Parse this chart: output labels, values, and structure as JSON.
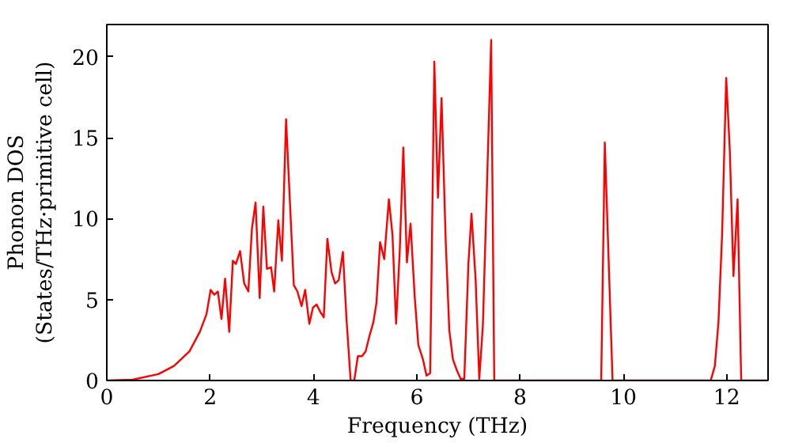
{
  "chart_data": {
    "type": "line",
    "xlabel": "Frequency (THz)",
    "ylabel": "Phonon DOS\n(States/THz·primitive cell)",
    "xlim": [
      0,
      12.8
    ],
    "ylim": [
      0,
      22
    ],
    "xticks": [
      0,
      2,
      4,
      6,
      8,
      10,
      12
    ],
    "yticks": [
      0,
      5,
      10,
      15,
      20
    ],
    "grid": false,
    "series": [
      {
        "color": "#ff0000",
        "x": [
          0,
          0.5,
          1.0,
          1.3,
          1.6,
          1.8,
          1.93,
          2.01,
          2.08,
          2.15,
          2.22,
          2.29,
          2.37,
          2.44,
          2.5,
          2.58,
          2.66,
          2.74,
          2.81,
          2.88,
          2.96,
          3.03,
          3.1,
          3.18,
          3.24,
          3.32,
          3.39,
          3.47,
          3.62,
          3.69,
          3.77,
          3.84,
          3.92,
          3.99,
          4.06,
          4.14,
          4.2,
          4.27,
          4.35,
          4.42,
          4.49,
          4.57,
          4.64,
          4.72,
          4.79,
          4.86,
          4.94,
          5.01,
          5.08,
          5.16,
          5.22,
          5.29,
          5.37,
          5.46,
          5.53,
          5.6,
          5.67,
          5.74,
          5.81,
          5.88,
          5.96,
          6.03,
          6.12,
          6.19,
          6.26,
          6.34,
          6.41,
          6.48,
          6.56,
          6.63,
          6.7,
          6.78,
          6.85,
          6.92,
          7.0,
          7.06,
          7.14,
          7.21,
          7.28,
          7.36,
          7.44,
          7.5,
          9.57,
          9.64,
          9.79,
          11.69,
          11.77,
          11.84,
          11.91,
          11.99,
          12.06,
          12.13,
          12.21,
          12.28,
          12.8
        ],
        "values": [
          0,
          0.05,
          0.4,
          0.9,
          1.8,
          3,
          4.1,
          5.6,
          5.3,
          5.5,
          3.8,
          6.3,
          3.0,
          7.4,
          7.2,
          8.0,
          6.0,
          5.5,
          9.4,
          11.0,
          5.1,
          10.75,
          6.9,
          7.0,
          5.5,
          9.9,
          7.4,
          16.15,
          5.9,
          5.5,
          4.6,
          5.6,
          3.5,
          4.5,
          4.7,
          4.2,
          3.9,
          8.75,
          6.7,
          6.0,
          6.2,
          7.95,
          3.8,
          0,
          0,
          1.5,
          1.5,
          1.8,
          2.7,
          3.6,
          4.8,
          8.55,
          7.5,
          11.2,
          9.0,
          3.5,
          7.95,
          14.4,
          7.3,
          9.7,
          5.2,
          2.2,
          1.3,
          0.3,
          0.45,
          19.7,
          11.3,
          17.45,
          8.65,
          3.1,
          1.3,
          0.6,
          0.1,
          0.1,
          7.25,
          10.3,
          6.2,
          0.1,
          3.4,
          12.15,
          21.05,
          0,
          0,
          14.7,
          0,
          0,
          0.9,
          3.6,
          9.0,
          18.7,
          14.2,
          6.45,
          11.2,
          0,
          0
        ]
      }
    ]
  }
}
